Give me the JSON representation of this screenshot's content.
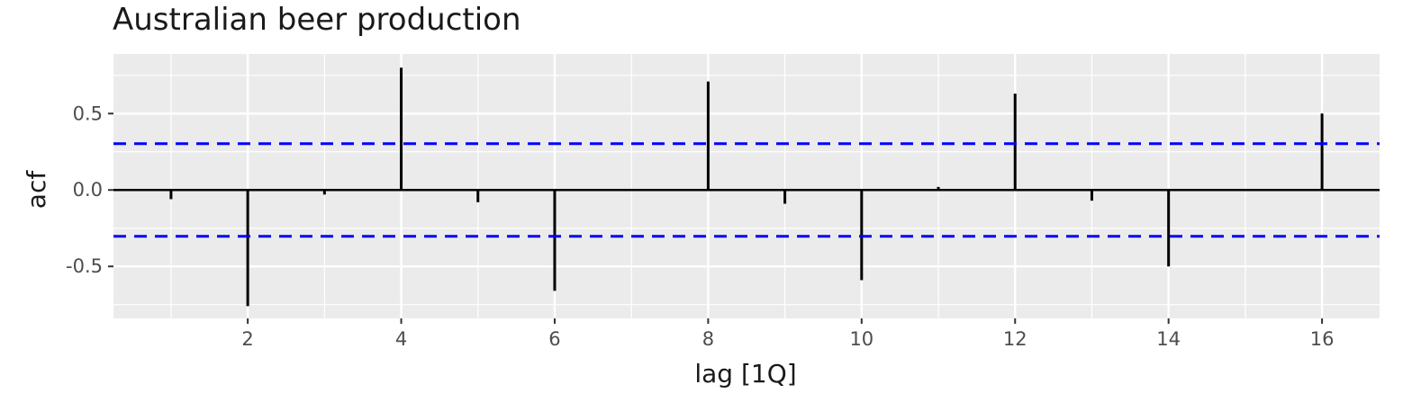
{
  "chart_data": {
    "type": "bar",
    "title": "Australian beer production",
    "xlabel": "lag [1Q]",
    "ylabel": "acf",
    "x": [
      1,
      2,
      3,
      4,
      5,
      6,
      7,
      8,
      9,
      10,
      11,
      12,
      13,
      14,
      15,
      16
    ],
    "values": [
      -0.06,
      -0.76,
      -0.03,
      0.8,
      -0.08,
      -0.66,
      0.0,
      0.71,
      -0.09,
      -0.59,
      0.02,
      0.63,
      -0.07,
      -0.5,
      0.0,
      0.5
    ],
    "xlim": [
      0.25,
      16.75
    ],
    "ylim": [
      -0.84,
      0.89
    ],
    "x_ticks": [
      "2",
      "4",
      "6",
      "8",
      "10",
      "12",
      "14",
      "16"
    ],
    "y_ticks": [
      "0.5",
      "0.0",
      "-0.5"
    ],
    "confidence_bounds": [
      0.303,
      -0.303
    ],
    "grid": true,
    "colors": {
      "panel": "#ebebeb",
      "grid": "#ffffff",
      "bar": "#000000",
      "zero_line": "#000000",
      "bound": "#0000ff"
    }
  }
}
